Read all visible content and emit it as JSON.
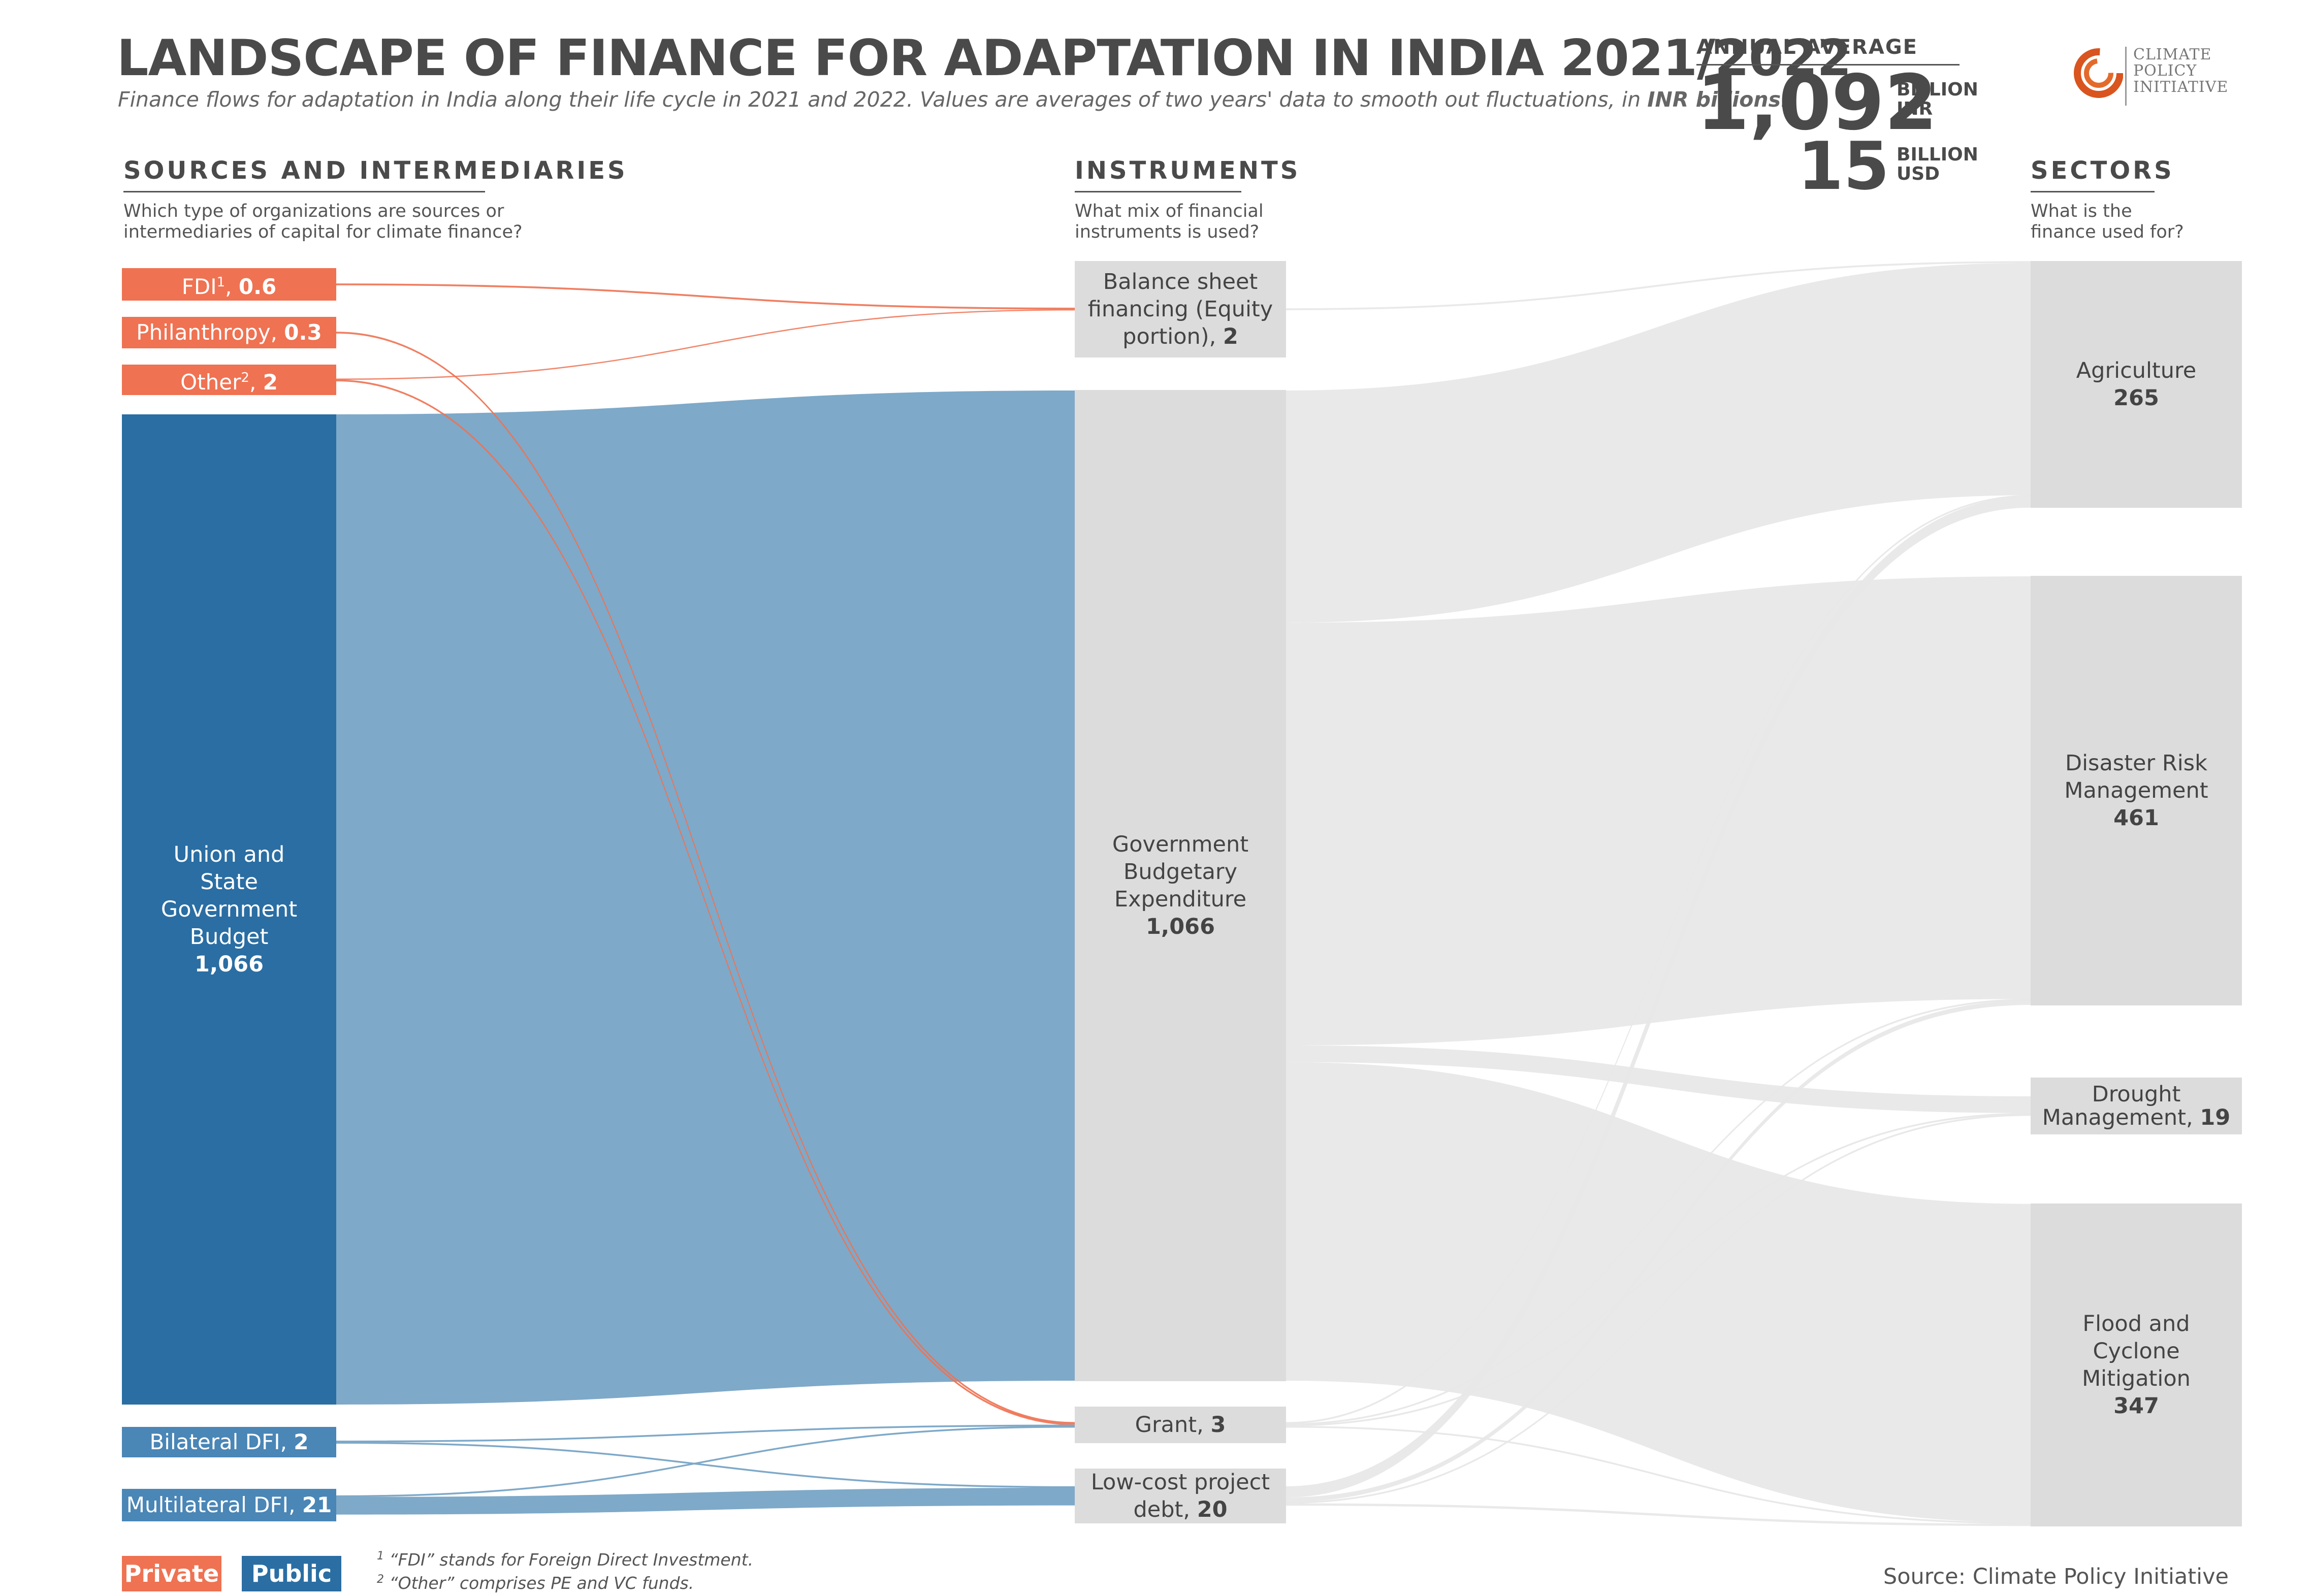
{
  "header": {
    "title": "LANDSCAPE OF FINANCE FOR ADAPTATION IN INDIA 2021/2022",
    "subtitle_text": "Finance flows for adaptation in India along their life cycle in 2021 and 2022. Values are averages of two years' data to smooth out fluctuations, in ",
    "subtitle_emph": "INR billions."
  },
  "annual": {
    "label": "ANNUAL AVERAGE",
    "inr_value": "1,092",
    "inr_unit_1": "BILLION",
    "inr_unit_2": "INR",
    "usd_value": "15",
    "usd_unit_1": "BILLION",
    "usd_unit_2": "USD"
  },
  "logo": {
    "line1": "CLIMATE",
    "line2": "POLICY",
    "line3": "INITIATIVE"
  },
  "columns": {
    "sources": {
      "heading": "SOURCES AND INTERMEDIARIES",
      "q1": "Which type of organizations are sources or",
      "q2": "intermediaries of capital for climate finance?"
    },
    "instruments": {
      "heading": "INSTRUMENTS",
      "q1": "What mix of financial",
      "q2": "instruments is used?"
    },
    "sectors": {
      "heading": "SECTORS",
      "q1": "What is the",
      "q2": "finance used for?"
    }
  },
  "colors": {
    "private": "#ef7252",
    "public_dark": "#2a6ea3",
    "public_mid": "#4a86b6",
    "public_flow": "#7ea9c9",
    "node_gray": "#dcdcdc",
    "flow_gray": "#e8e8e8"
  },
  "chart_data": {
    "type": "sankey",
    "units": "INR billions",
    "nodes": [
      {
        "id": "fdi",
        "name": "FDI",
        "sup": "1",
        "value": 0.6,
        "value_text": "0.6",
        "column": "sources",
        "group": "private"
      },
      {
        "id": "phil",
        "name": "Philanthropy",
        "value": 0.3,
        "value_text": "0.3",
        "column": "sources",
        "group": "private"
      },
      {
        "id": "other",
        "name": "Other",
        "sup": "2",
        "value": 2,
        "value_text": "2",
        "column": "sources",
        "group": "private"
      },
      {
        "id": "gov",
        "name": "Union and State Government Budget",
        "value": 1066,
        "value_text": "1,066",
        "column": "sources",
        "group": "public"
      },
      {
        "id": "bdfi",
        "name": "Bilateral DFI",
        "value": 2,
        "value_text": "2",
        "column": "sources",
        "group": "public"
      },
      {
        "id": "mdfi",
        "name": "Multilateral DFI",
        "value": 21,
        "value_text": "21",
        "column": "sources",
        "group": "public"
      },
      {
        "id": "bsf",
        "name": "Balance sheet financing (Equity portion)",
        "value": 2,
        "value_text": "2",
        "column": "instruments"
      },
      {
        "id": "gbe",
        "name": "Government Budgetary Expenditure",
        "value": 1066,
        "value_text": "1,066",
        "column": "instruments"
      },
      {
        "id": "grant",
        "name": "Grant",
        "value": 3,
        "value_text": "3",
        "column": "instruments"
      },
      {
        "id": "lcd",
        "name": "Low-cost project debt",
        "value": 20,
        "value_text": "20",
        "column": "instruments"
      },
      {
        "id": "agri",
        "name": "Agriculture",
        "value": 265,
        "value_text": "265",
        "column": "sectors"
      },
      {
        "id": "drm",
        "name": "Disaster Risk Management",
        "value": 461,
        "value_text": "461",
        "column": "sectors"
      },
      {
        "id": "drought",
        "name": "Drought Management",
        "value": 19,
        "value_text": "19",
        "column": "sectors"
      },
      {
        "id": "flood",
        "name": "Flood and Cyclone Mitigation",
        "value": 347,
        "value_text": "347",
        "column": "sectors"
      }
    ],
    "links": [
      {
        "source": "fdi",
        "target": "bsf",
        "value": 0.6
      },
      {
        "source": "other",
        "target": "bsf",
        "value": 1.4
      },
      {
        "source": "gov",
        "target": "gbe",
        "value": 1066
      },
      {
        "source": "phil",
        "target": "grant",
        "value": 0.3
      },
      {
        "source": "other",
        "target": "grant",
        "value": 0.6
      },
      {
        "source": "bdfi",
        "target": "grant",
        "value": 1
      },
      {
        "source": "mdfi",
        "target": "grant",
        "value": 1.1
      },
      {
        "source": "bdfi",
        "target": "lcd",
        "value": 1
      },
      {
        "source": "mdfi",
        "target": "lcd",
        "value": 19
      },
      {
        "source": "bsf",
        "target": "agri",
        "value": 2
      },
      {
        "source": "gbe",
        "target": "agri",
        "value": 250
      },
      {
        "source": "gbe",
        "target": "drm",
        "value": 455
      },
      {
        "source": "gbe",
        "target": "drought",
        "value": 18
      },
      {
        "source": "gbe",
        "target": "flood",
        "value": 343
      },
      {
        "source": "grant",
        "target": "agri",
        "value": 1
      },
      {
        "source": "grant",
        "target": "drm",
        "value": 1
      },
      {
        "source": "grant",
        "target": "drought",
        "value": 0.5
      },
      {
        "source": "grant",
        "target": "flood",
        "value": 0.5
      },
      {
        "source": "lcd",
        "target": "agri",
        "value": 12
      },
      {
        "source": "lcd",
        "target": "drm",
        "value": 5
      },
      {
        "source": "lcd",
        "target": "drought",
        "value": 0.5
      },
      {
        "source": "lcd",
        "target": "flood",
        "value": 2.5
      }
    ]
  },
  "legend": {
    "private": "Private",
    "public": "Public"
  },
  "footnotes": {
    "n1_mark": "1",
    "n1_text": "“FDI” stands for Foreign Direct Investment.",
    "n2_mark": "2",
    "n2_text": "“Other” comprises PE and VC funds."
  },
  "source": "Source: Climate Policy Initiative"
}
